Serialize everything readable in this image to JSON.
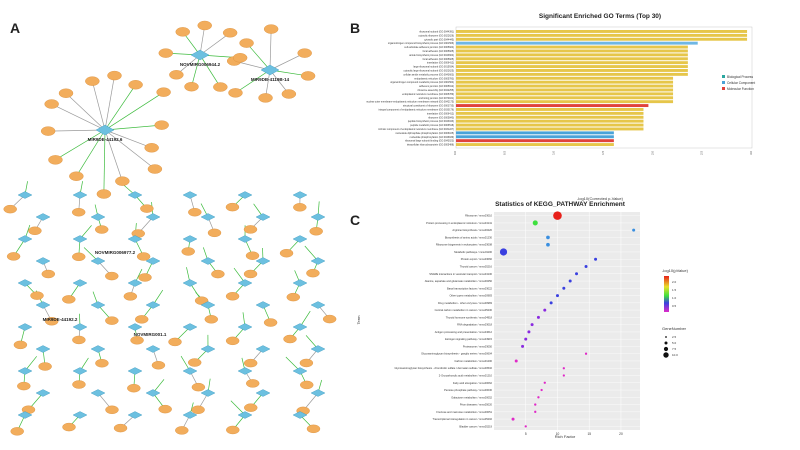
{
  "panels": {
    "a": "A",
    "b": "B",
    "c": "C"
  },
  "network": {
    "hubs": [
      "MIR9DE-44192.6",
      "MIR9DB-4119B-14",
      "NOVMIRG006944.2",
      "NOVMIRG006977.2",
      "NOVMIRG001.1",
      "MIR9DE-44192.2"
    ],
    "gene_label": "Gene",
    "mirna_label": "miRNA"
  },
  "go": {
    "title": "Significant Enriched GO Terms (Top 30)",
    "xlabel": "-log10(Corrected p-Value)",
    "legend": [
      {
        "name": "Biological Process",
        "color": "#2aa7a0"
      },
      {
        "name": "Cellular Component",
        "color": "#4aa3d8"
      },
      {
        "name": "Molecular Function",
        "color": "#e0423c"
      }
    ],
    "ticks": [
      "0.0",
      "0.5",
      "1.0",
      "1.5",
      "2.0",
      "2.5",
      "3.0"
    ],
    "xlim": [
      0,
      3.0
    ],
    "bars": [
      {
        "term": "ribosomal subunit (GO:0044391)",
        "value": 2.95,
        "cat": 1
      },
      {
        "term": "cytosolic ribosome (GO:0022626)",
        "value": 2.95,
        "cat": 1
      },
      {
        "term": "cytosolic part (GO:0044445)",
        "value": 2.95,
        "cat": 1
      },
      {
        "term": "organonitrogen compound biosynthetic process (GO:1901566)",
        "value": 2.45,
        "cat": 1
      },
      {
        "term": "cell-substrate adherens junction (GO:0005924)",
        "value": 2.35,
        "cat": 1
      },
      {
        "term": "focal adhesion (GO:0005925)",
        "value": 2.35,
        "cat": 1
      },
      {
        "term": "amide biosynthetic process (GO:0043604)",
        "value": 2.35,
        "cat": 1
      },
      {
        "term": "focal adhesion (GO:0005925)",
        "value": 2.35,
        "cat": 1
      },
      {
        "term": "translation (GO:0006412)",
        "value": 2.35,
        "cat": 1
      },
      {
        "term": "large ribosomal subunit (GO:0015934)",
        "value": 2.35,
        "cat": 1
      },
      {
        "term": "cytosolic large ribosomal subunit (GO:0022625)",
        "value": 2.35,
        "cat": 1
      },
      {
        "term": "cellular amide metabolic process (GO:0043603)",
        "value": 2.35,
        "cat": 1
      },
      {
        "term": "endoplasmic reticulum (GO:0005783)",
        "value": 2.2,
        "cat": 1
      },
      {
        "term": "organonitrogen compound metabolic process (GO:1901564)",
        "value": 2.2,
        "cat": 1
      },
      {
        "term": "adherens junction (GO:0005912)",
        "value": 2.2,
        "cat": 1
      },
      {
        "term": "ribosome assembly (GO:0042255)",
        "value": 2.2,
        "cat": 1
      },
      {
        "term": "endoplasmic reticulum membrane (GO:0005789)",
        "value": 2.2,
        "cat": 1
      },
      {
        "term": "anchoring junction (GO:0070161)",
        "value": 2.2,
        "cat": 1
      },
      {
        "term": "nuclear outer membrane-endoplasmic reticulum membrane network (GO:0042175)",
        "value": 2.2,
        "cat": 1
      },
      {
        "term": "structural constituent of ribosome (GO:0003735)",
        "value": 1.95,
        "cat": 2
      },
      {
        "term": "integral component of endoplasmic reticulum membrane (GO:0030176)",
        "value": 1.9,
        "cat": 1
      },
      {
        "term": "translation (GO:0006412)",
        "value": 1.9,
        "cat": 1
      },
      {
        "term": "ribosome (GO:0005840)",
        "value": 1.9,
        "cat": 1
      },
      {
        "term": "peptide biosynthetic process (GO:0043043)",
        "value": 1.9,
        "cat": 1
      },
      {
        "term": "peptide metabolic process (GO:0006518)",
        "value": 1.9,
        "cat": 1
      },
      {
        "term": "intrinsic component of endoplasmic reticulum membrane (GO:0031227)",
        "value": 1.9,
        "cat": 1
      },
      {
        "term": "nucleoside diphosphate phosphorylation (GO:0006165)",
        "value": 1.6,
        "cat": 0
      },
      {
        "term": "nucleotide phosphorylation (GO:0046939)",
        "value": 1.6,
        "cat": 0
      },
      {
        "term": "ribosomal large subunit binding (GO:0043023)",
        "value": 1.6,
        "cat": 2
      },
      {
        "term": "intracellular ribonucleoprotein (GO:0005488)",
        "value": 1.6,
        "cat": 1
      }
    ]
  },
  "kegg": {
    "title": "Statistics of KEGG_PATHWAY Enrichment",
    "xlabel": "Rich Factor",
    "ylabel": "Term",
    "xticks": [
      "5",
      "10",
      "15",
      "20"
    ],
    "xlim": [
      0,
      23
    ],
    "color_legend_title": "-log10(pValue)",
    "color_ticks": [
      "2.0",
      "1.5",
      "1.0",
      "0.5"
    ],
    "size_legend_title": "GeneNumber",
    "size_ticks": [
      "2.5",
      "5.0",
      "7.5",
      "10.0"
    ],
    "points": [
      {
        "term": "Ribosome / mmu03010",
        "x": 10,
        "size": 10,
        "c": 2.3
      },
      {
        "term": "Protein processing in endoplasmic reticulum / mmu04141",
        "x": 6.5,
        "size": 5,
        "c": 1.8
      },
      {
        "term": "Arginine biosynthesis / mmu00220",
        "x": 22,
        "size": 2,
        "c": 0.4
      },
      {
        "term": "Biosynthesis of amino acids / mmu01230",
        "x": 8.5,
        "size": 3,
        "c": 0.4
      },
      {
        "term": "Ribosome biogenesis in eukaryotes / mmu03008",
        "x": 8.5,
        "size": 3,
        "c": 0.4
      },
      {
        "term": "Metabolic pathways / mmu01100",
        "x": 1.5,
        "size": 8,
        "c": 0.3
      },
      {
        "term": "Protein export / mmu03060",
        "x": 16,
        "size": 2,
        "c": 0.3
      },
      {
        "term": "Thyroid cancer / mmu05216",
        "x": 14.5,
        "size": 2,
        "c": 0.2
      },
      {
        "term": "SNARE interactions in vesicular transport / mmu04130",
        "x": 13,
        "size": 2,
        "c": 0.2
      },
      {
        "term": "Alanine, aspartate and glutamate metabolism / mmu00250",
        "x": 12,
        "size": 2,
        "c": 0.2
      },
      {
        "term": "Basal transcription factors / mmu03022",
        "x": 11,
        "size": 2,
        "c": 0.2
      },
      {
        "term": "Other types metabolism / mmu00983",
        "x": 10,
        "size": 2,
        "c": 0.2
      },
      {
        "term": "Drug metabolism - other enzymes / mmu00983",
        "x": 9,
        "size": 2,
        "c": 0.15
      },
      {
        "term": "Central carbon metabolism in cancer / mmu05230",
        "x": 8,
        "size": 2,
        "c": 0.1
      },
      {
        "term": "Thyroid hormone synthesis / mmu04918",
        "x": 7,
        "size": 2,
        "c": 0.1
      },
      {
        "term": "RNA degradation / mmu03018",
        "x": 6,
        "size": 2,
        "c": 0.05
      },
      {
        "term": "Antigen processing and presentation / mmu04612",
        "x": 5.5,
        "size": 2,
        "c": 0.05
      },
      {
        "term": "Estrogen signaling pathway / mmu04915",
        "x": 5,
        "size": 2,
        "c": 0.05
      },
      {
        "term": "Proteasome / mmu03050",
        "x": 4.5,
        "size": 2,
        "c": 0.05
      },
      {
        "term": "Glycosaminoglycan biosynthesis - ganglio series / mmu00604",
        "x": 14.5,
        "size": 1,
        "c": 0.0
      },
      {
        "term": "Carbon metabolism / mmu01200",
        "x": 3.5,
        "size": 2,
        "c": 0.0
      },
      {
        "term": "Glycosaminoglycan biosynthesis - chondroitin sulfate / dermatan sulfate / mmu00532",
        "x": 11,
        "size": 1,
        "c": 0.0
      },
      {
        "term": "2-Oxocarboxylic acid metabolism / mmu01210",
        "x": 11,
        "size": 1,
        "c": 0.0
      },
      {
        "term": "Fatty acid elongation / mmu00062",
        "x": 8,
        "size": 1,
        "c": 0.0
      },
      {
        "term": "Pentose phosphate pathway / mmu00030",
        "x": 7.5,
        "size": 1,
        "c": 0.0
      },
      {
        "term": "Galactose metabolism / mmu00052",
        "x": 7,
        "size": 1,
        "c": 0.0
      },
      {
        "term": "Prion diseases / mmu05020",
        "x": 6.5,
        "size": 1,
        "c": 0.0
      },
      {
        "term": "Fructose and mannose metabolism / mmu00051",
        "x": 6.5,
        "size": 1,
        "c": 0.0
      },
      {
        "term": "Transcriptional misregulation in cancer / mmu05202",
        "x": 3,
        "size": 2,
        "c": 0.0
      },
      {
        "term": "Bladder cancer / mmu05219",
        "x": 5,
        "size": 1,
        "c": 0.0
      }
    ]
  }
}
